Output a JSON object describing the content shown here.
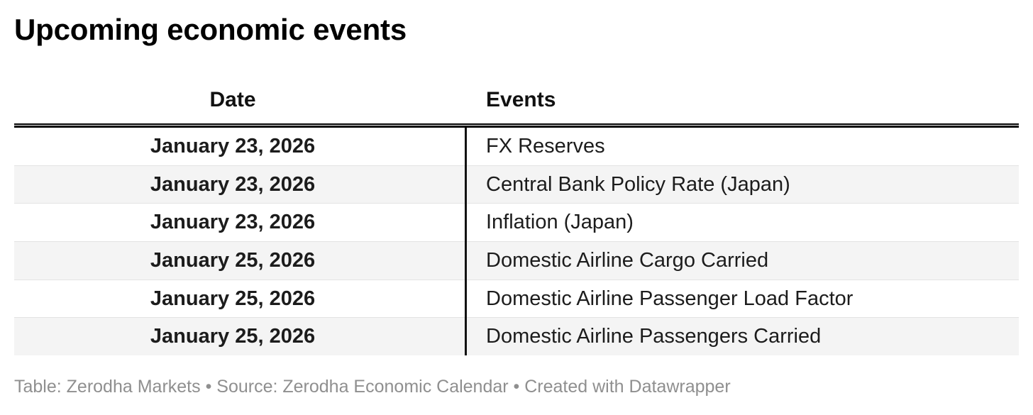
{
  "chart_data": {
    "type": "table",
    "title": "Upcoming economic events",
    "columns": [
      "Date",
      "Events"
    ],
    "rows": [
      {
        "date": "January 23, 2026",
        "event": "FX Reserves"
      },
      {
        "date": "January 23, 2026",
        "event": "Central Bank Policy Rate (Japan)"
      },
      {
        "date": "January 23, 2026",
        "event": "Inflation (Japan)"
      },
      {
        "date": "January 25, 2026",
        "event": "Domestic Airline Cargo Carried"
      },
      {
        "date": "January 25, 2026",
        "event": "Domestic Airline Passenger Load Factor"
      },
      {
        "date": "January 25, 2026",
        "event": "Domestic Airline Passengers Carried"
      }
    ],
    "footer": "Table: Zerodha Markets • Source: Zerodha Economic Calendar • Created with Datawrapper",
    "layout_hints": {
      "date_column_align": "center",
      "events_column_align": "left",
      "striped_rows": [
        2,
        4,
        6
      ],
      "header_rule": "double",
      "column_divider": true
    }
  },
  "colors": {
    "background": "#ffffff",
    "title_text": "#000000",
    "body_text": "#1c1c1c",
    "stripe": "#f4f4f4",
    "row_separator": "#e3e3e3",
    "header_rule": "#000000",
    "column_divider": "#121212",
    "footer_text": "#8f8f8f"
  }
}
